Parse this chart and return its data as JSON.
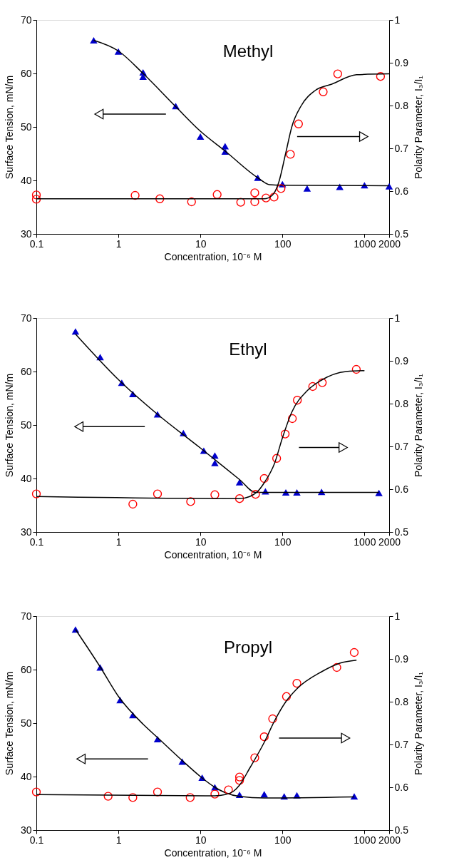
{
  "chart_data": [
    {
      "type": "scatter",
      "title": "Methyl",
      "xlabel": "Concentration, 10⁻⁶ M",
      "ylabel": "Surface Tension, mN/m",
      "y2label": "Polarity Parameter, I₃/I₁",
      "log": "x",
      "xlim": [
        0.1,
        2000
      ],
      "xticks": [
        0.1,
        1,
        10,
        100,
        1000,
        2000
      ],
      "ylim": [
        30,
        70
      ],
      "yticks": [
        30,
        40,
        50,
        60,
        70
      ],
      "y2lim": [
        0.5,
        1
      ],
      "y2ticks": [
        0.5,
        0.6,
        0.7,
        0.8,
        0.9,
        1
      ],
      "series": [
        {
          "type": "scatter",
          "marker": "triangle",
          "color": "#0000cc",
          "x": [
            0.5,
            1,
            2,
            2,
            5,
            10,
            20,
            20,
            50,
            100,
            200,
            500,
            1000,
            2000
          ],
          "values": [
            66.2,
            64.1,
            60.2,
            59.4,
            53.9,
            48.2,
            46.4,
            45.4,
            40.5,
            39.3,
            38.5,
            38.8,
            39.1,
            38.9
          ]
        },
        {
          "type": "line",
          "marker": "none",
          "line_style": "solid",
          "color": "#000000",
          "x": [
            0.5,
            1,
            2,
            5,
            10,
            20,
            50,
            70,
            100,
            2000
          ],
          "values": [
            66.2,
            64.2,
            60,
            53.8,
            49.2,
            45.5,
            40.5,
            39.2,
            39.1,
            39.0
          ]
        },
        {
          "type": "scatter",
          "marker": "circle",
          "axis": "y2",
          "color": "#ff0000",
          "x": [
            0.1,
            0.1,
            1.6,
            3.2,
            7.8,
            16,
            31,
            46,
            46,
            63,
            79,
            96,
            125,
            157,
            314,
            472,
            1570
          ],
          "values": [
            0.591,
            0.581,
            0.59,
            0.582,
            0.575,
            0.592,
            0.574,
            0.596,
            0.575,
            0.584,
            0.586,
            0.606,
            0.686,
            0.757,
            0.832,
            0.874,
            0.868
          ]
        },
        {
          "type": "line",
          "marker": "none",
          "line_style": "solid",
          "axis": "y2",
          "color": "#000000",
          "x": [
            0.1,
            60,
            75,
            90,
            110,
            130,
            170,
            250,
            400,
            800,
            2000
          ],
          "values": [
            0.582,
            0.582,
            0.59,
            0.62,
            0.69,
            0.75,
            0.8,
            0.835,
            0.85,
            0.872,
            0.874
          ]
        }
      ]
    },
    {
      "type": "scatter",
      "title": "Ethyl",
      "xlabel": "Concentration, 10⁻⁶ M",
      "ylabel": "Surface Tension, mN/m",
      "y2label": "Polarity Parameter, I₃/I₁",
      "log": "x",
      "xlim": [
        0.1,
        2000
      ],
      "xticks": [
        0.1,
        1,
        10,
        100,
        1000,
        2000
      ],
      "ylim": [
        30,
        70
      ],
      "yticks": [
        30,
        40,
        50,
        60,
        70
      ],
      "y2lim": [
        0.5,
        1
      ],
      "y2ticks": [
        0.5,
        0.6,
        0.7,
        0.8,
        0.9,
        1
      ],
      "series": [
        {
          "type": "scatter",
          "marker": "triangle",
          "color": "#0000cc",
          "x": [
            0.3,
            0.6,
            1.1,
            1.5,
            3,
            6.2,
            11,
            15,
            15,
            30,
            62,
            110,
            150,
            300,
            1500
          ],
          "values": [
            67.5,
            62.7,
            57.9,
            55.8,
            52.0,
            48.5,
            45.2,
            44.3,
            42.9,
            39.3,
            37.6,
            37.4,
            37.4,
            37.5,
            37.3
          ]
        },
        {
          "type": "line",
          "marker": "none",
          "line_style": "solid",
          "color": "#000000",
          "x": [
            0.3,
            1,
            3,
            10,
            30,
            47,
            60,
            1500
          ],
          "values": [
            67,
            58.5,
            52,
            45.7,
            39.8,
            37.4,
            37.4,
            37.4
          ]
        },
        {
          "type": "scatter",
          "marker": "circle",
          "axis": "y2",
          "color": "#ff0000",
          "x": [
            0.1,
            1.5,
            3,
            7.6,
            15,
            30,
            47,
            60,
            85,
            108,
            132,
            152,
            234,
            306,
            795
          ],
          "values": [
            0.589,
            0.565,
            0.589,
            0.571,
            0.587,
            0.578,
            0.588,
            0.625,
            0.672,
            0.729,
            0.765,
            0.808,
            0.84,
            0.849,
            0.88
          ]
        },
        {
          "type": "line",
          "marker": "none",
          "line_style": "solid",
          "axis": "y2",
          "color": "#000000",
          "x": [
            0.1,
            30,
            40,
            50,
            60,
            80,
            100,
            130,
            200,
            300,
            600,
            1000
          ],
          "values": [
            0.583,
            0.578,
            0.583,
            0.595,
            0.615,
            0.66,
            0.72,
            0.78,
            0.83,
            0.855,
            0.875,
            0.877
          ]
        }
      ]
    },
    {
      "type": "scatter",
      "title": "Propyl",
      "xlabel": "Concentration, 10⁻⁶ M",
      "ylabel": "Surface Tension, mN/m",
      "y2label": "Polarity Parameter, I₃/I₁",
      "log": "x",
      "xlim": [
        0.1,
        2000
      ],
      "xticks": [
        0.1,
        1,
        10,
        100,
        1000,
        2000
      ],
      "ylim": [
        30,
        70
      ],
      "yticks": [
        30,
        40,
        50,
        60,
        70
      ],
      "y2lim": [
        0.5,
        1
      ],
      "y2ticks": [
        0.5,
        0.6,
        0.7,
        0.8,
        0.9,
        1
      ],
      "series": [
        {
          "type": "scatter",
          "marker": "triangle",
          "color": "#0000cc",
          "x": [
            0.3,
            0.6,
            1.05,
            1.5,
            3,
            6,
            10.5,
            15,
            30,
            60,
            105,
            150,
            750
          ],
          "values": [
            67.5,
            60.4,
            54.3,
            51.5,
            47.0,
            42.8,
            39.8,
            38.0,
            36.6,
            36.7,
            36.3,
            36.5,
            36.3
          ]
        },
        {
          "type": "line",
          "marker": "none",
          "line_style": "solid",
          "color": "#000000",
          "x": [
            0.3,
            0.6,
            1,
            2,
            3,
            6,
            10,
            15,
            20,
            30,
            60,
            750
          ],
          "values": [
            67.5,
            60.5,
            55,
            49.8,
            47.3,
            43,
            40,
            38,
            37,
            36.3,
            36,
            36.2
          ]
        },
        {
          "type": "scatter",
          "marker": "circle",
          "axis": "y2",
          "color": "#ff0000",
          "x": [
            0.1,
            0.75,
            1.5,
            3,
            7.5,
            15,
            22,
            30,
            30,
            46,
            60,
            76,
            112,
            150,
            460,
            750
          ],
          "values": [
            0.589,
            0.579,
            0.576,
            0.589,
            0.576,
            0.584,
            0.594,
            0.624,
            0.616,
            0.669,
            0.718,
            0.76,
            0.812,
            0.843,
            0.88,
            0.915
          ]
        },
        {
          "type": "line",
          "marker": "none",
          "line_style": "solid",
          "axis": "y2",
          "color": "#000000",
          "x": [
            0.1,
            15,
            20,
            25,
            30,
            40,
            60,
            80,
            110,
            150,
            300,
            500,
            800
          ],
          "values": [
            0.583,
            0.58,
            0.583,
            0.59,
            0.605,
            0.645,
            0.705,
            0.755,
            0.8,
            0.83,
            0.87,
            0.89,
            0.897
          ]
        }
      ]
    }
  ]
}
